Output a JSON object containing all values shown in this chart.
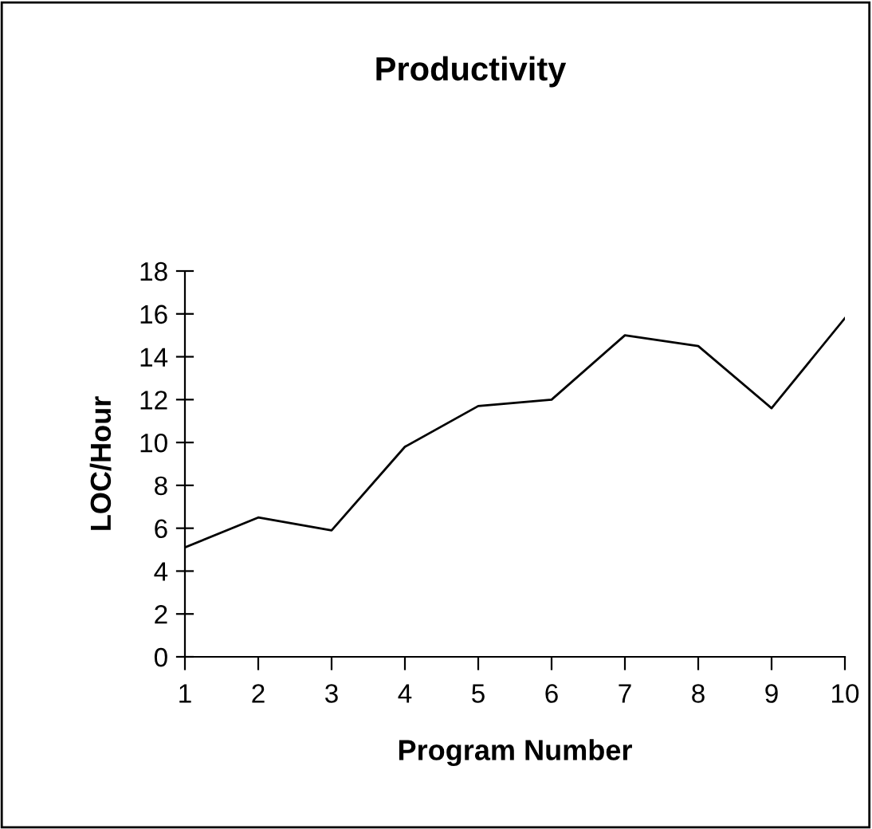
{
  "chart_data": {
    "type": "line",
    "title": "Productivity",
    "xlabel": "Program Number",
    "ylabel": "LOC/Hour",
    "x": [
      1,
      2,
      3,
      4,
      5,
      6,
      7,
      8,
      9,
      10
    ],
    "series": [
      {
        "color": "#000000",
        "values": [
          5.1,
          6.5,
          5.9,
          9.8,
          11.7,
          12.0,
          15.0,
          14.5,
          11.6,
          15.8
        ]
      }
    ],
    "xlim": [
      1,
      10
    ],
    "xticks": [
      1,
      2,
      3,
      4,
      5,
      6,
      7,
      8,
      9,
      10
    ],
    "ylim": [
      0,
      18
    ],
    "yticks": [
      0,
      2,
      4,
      6,
      8,
      10,
      12,
      14,
      16,
      18
    ],
    "grid": false,
    "marker": "none",
    "line_style": "solid"
  }
}
